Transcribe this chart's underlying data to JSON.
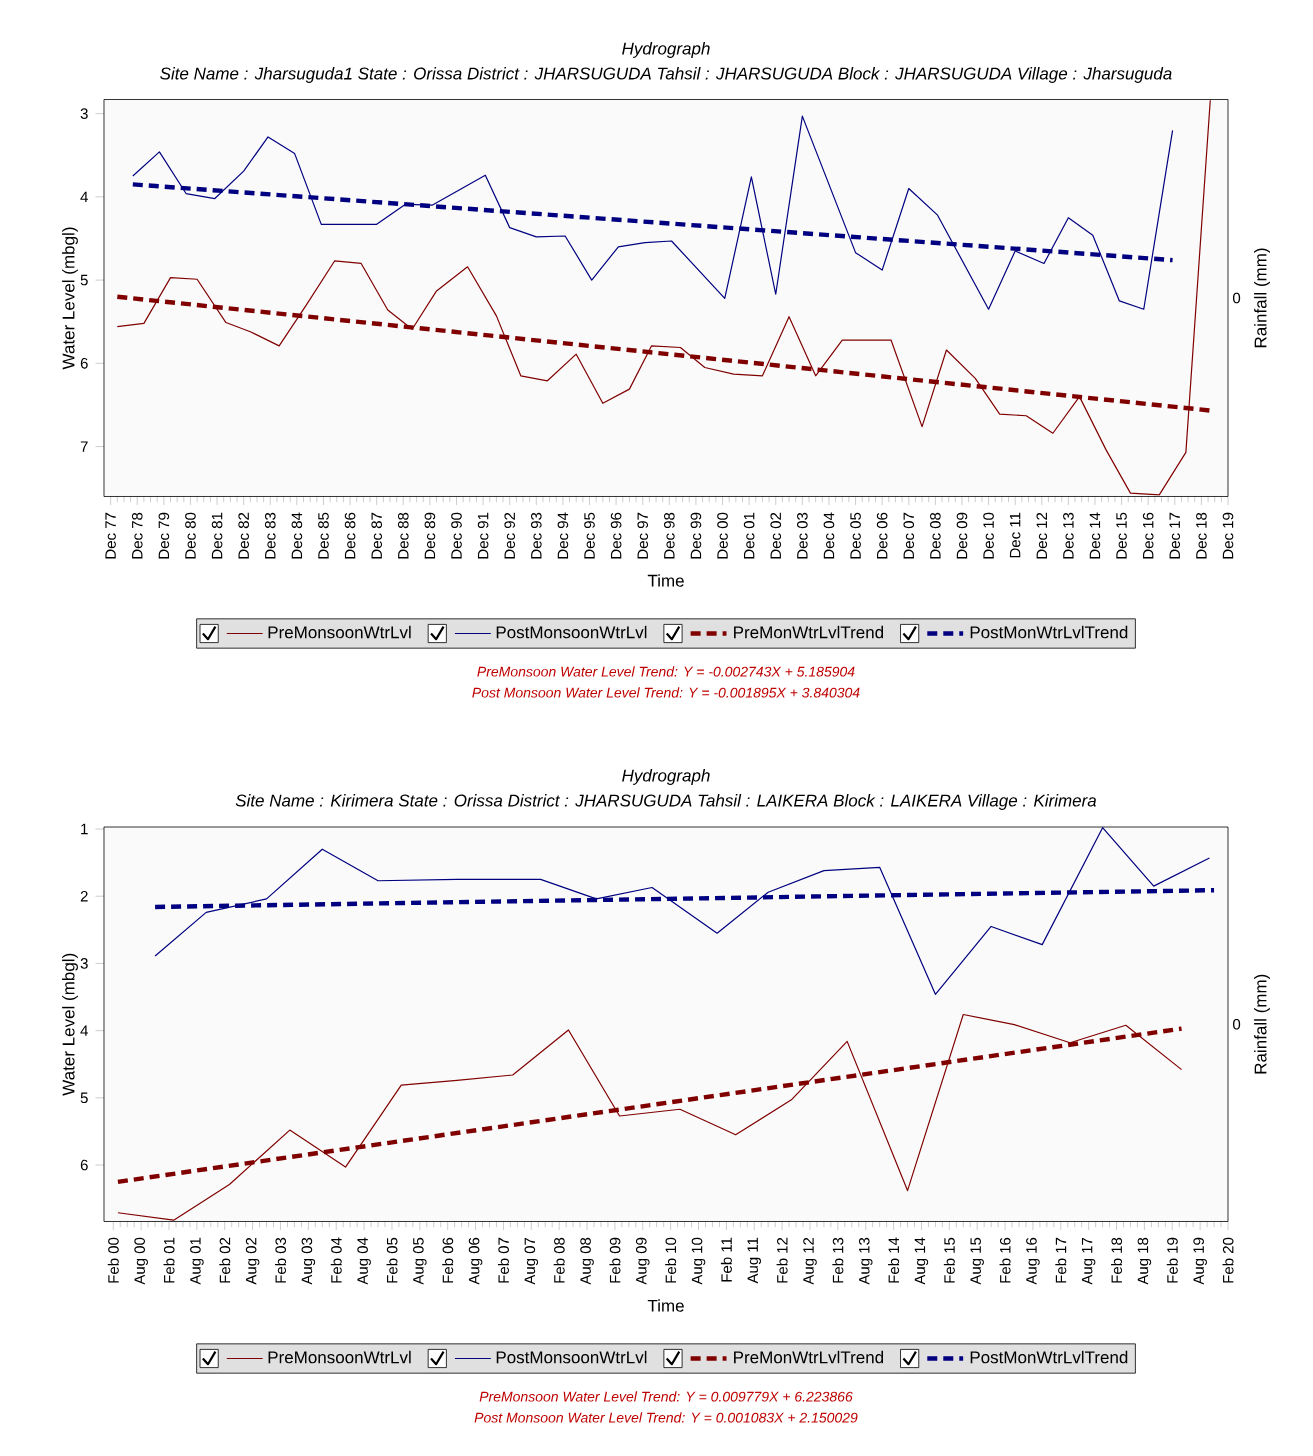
{
  "chart_data": [
    {
      "type": "line",
      "title": "Hydrograph",
      "subtitle": "Site Name : Jharsuguda1  State : Orissa District : JHARSUGUDA  Tahsil : JHARSUGUDA  Block : JHARSUGUDA Village : Jharsuguda",
      "xlabel": "Time",
      "ylabel": "Water Level (mbgl)",
      "y2label": "Rainfall (mm)",
      "xlim": [
        "1977-09",
        "2019-12"
      ],
      "ylim": [
        7.6,
        2.83
      ],
      "yticks": [
        3,
        4,
        5,
        6,
        7
      ],
      "legend": "bottom",
      "line_style": "solid",
      "xticks": [
        {
          "value": "1977-12",
          "label": "Dec 77"
        },
        {
          "value": "1978-12",
          "label": "Dec 78"
        },
        {
          "value": "1979-12",
          "label": "Dec 79"
        },
        {
          "value": "1980-12",
          "label": "Dec 80"
        },
        {
          "value": "1981-12",
          "label": "Dec 81"
        },
        {
          "value": "1982-12",
          "label": "Dec 82"
        },
        {
          "value": "1983-12",
          "label": "Dec 83"
        },
        {
          "value": "1984-12",
          "label": "Dec 84"
        },
        {
          "value": "1985-12",
          "label": "Dec 85"
        },
        {
          "value": "1986-12",
          "label": "Dec 86"
        },
        {
          "value": "1987-12",
          "label": "Dec 87"
        },
        {
          "value": "1988-12",
          "label": "Dec 88"
        },
        {
          "value": "1989-12",
          "label": "Dec 89"
        },
        {
          "value": "1990-12",
          "label": "Dec 90"
        },
        {
          "value": "1991-12",
          "label": "Dec 91"
        },
        {
          "value": "1992-12",
          "label": "Dec 92"
        },
        {
          "value": "1993-12",
          "label": "Dec 93"
        },
        {
          "value": "1994-12",
          "label": "Dec 94"
        },
        {
          "value": "1995-12",
          "label": "Dec 95"
        },
        {
          "value": "1996-12",
          "label": "Dec 96"
        },
        {
          "value": "1997-12",
          "label": "Dec 97"
        },
        {
          "value": "1998-12",
          "label": "Dec 98"
        },
        {
          "value": "1999-12",
          "label": "Dec 99"
        },
        {
          "value": "2000-12",
          "label": "Dec 00"
        },
        {
          "value": "2001-12",
          "label": "Dec 01"
        },
        {
          "value": "2002-12",
          "label": "Dec 02"
        },
        {
          "value": "2003-12",
          "label": "Dec 03"
        },
        {
          "value": "2004-12",
          "label": "Dec 04"
        },
        {
          "value": "2005-12",
          "label": "Dec 05"
        },
        {
          "value": "2006-12",
          "label": "Dec 06"
        },
        {
          "value": "2007-12",
          "label": "Dec 07"
        },
        {
          "value": "2008-12",
          "label": "Dec 08"
        },
        {
          "value": "2009-12",
          "label": "Dec 09"
        },
        {
          "value": "2010-12",
          "label": "Dec 10"
        },
        {
          "value": "2011-12",
          "label": "Dec 11"
        },
        {
          "value": "2012-12",
          "label": "Dec 12"
        },
        {
          "value": "2013-12",
          "label": "Dec 13"
        },
        {
          "value": "2014-12",
          "label": "Dec 14"
        },
        {
          "value": "2015-12",
          "label": "Dec 15"
        },
        {
          "value": "2016-12",
          "label": "Dec 16"
        },
        {
          "value": "2017-12",
          "label": "Dec 17"
        },
        {
          "value": "2018-12",
          "label": "Dec 18"
        },
        {
          "value": "2019-12",
          "label": "Dec 19"
        }
      ],
      "series": [
        {
          "name": "PreMonsoonWtrLvl",
          "color": "#800000",
          "x": [
            "1978-03",
            "1979-03",
            "1980-03",
            "1981-03",
            "1982-04",
            "1983-03",
            "1984-04",
            "1985-04",
            "1986-05",
            "1987-05",
            "1988-05",
            "1989-04",
            "1990-03",
            "1991-05",
            "1992-06",
            "1993-05",
            "1994-05",
            "1995-06",
            "1996-06",
            "1997-06",
            "1998-04",
            "1999-05",
            "2000-04",
            "2001-05",
            "2002-06",
            "2003-06",
            "2004-06",
            "2005-06",
            "2007-04",
            "2008-06",
            "2009-05",
            "2010-06",
            "2011-05",
            "2012-05",
            "2013-05",
            "2014-05",
            "2015-05",
            "2016-04",
            "2017-05",
            "2018-05",
            "2019-04"
          ],
          "values": [
            5.56,
            5.52,
            4.97,
            4.99,
            5.51,
            5.62,
            5.79,
            5.31,
            4.77,
            4.8,
            5.36,
            5.59,
            5.13,
            4.84,
            5.43,
            6.15,
            6.21,
            5.89,
            6.48,
            6.31,
            5.79,
            5.81,
            6.05,
            6.13,
            6.15,
            5.44,
            6.15,
            5.72,
            5.72,
            6.76,
            5.84,
            6.18,
            6.61,
            6.63,
            6.84,
            6.4,
            7.04,
            7.56,
            7.58,
            7.07,
            2.84
          ]
        },
        {
          "name": "PostMonsoonWtrLvl",
          "color": "#000080",
          "x": [
            "1978-10",
            "1979-10",
            "1980-10",
            "1981-11",
            "1982-12",
            "1983-11",
            "1984-11",
            "1985-11",
            "1987-12",
            "1989-01",
            "1990-01",
            "1992-01",
            "1992-12",
            "1993-12",
            "1995-01",
            "1996-01",
            "1997-01",
            "1998-01",
            "1999-01",
            "2001-01",
            "2002-01",
            "2002-12",
            "2003-12",
            "2005-12",
            "2006-12",
            "2007-12",
            "2009-01",
            "2010-12",
            "2011-12",
            "2013-01",
            "2013-12",
            "2014-11",
            "2015-11",
            "2016-10",
            "2017-11"
          ],
          "values": [
            3.75,
            3.46,
            3.96,
            4.02,
            3.69,
            3.28,
            3.48,
            4.33,
            4.33,
            4.09,
            4.1,
            3.74,
            4.37,
            4.48,
            4.47,
            5.0,
            4.6,
            4.55,
            4.53,
            5.22,
            3.76,
            5.17,
            3.03,
            4.67,
            4.88,
            3.9,
            4.22,
            5.35,
            4.65,
            4.8,
            4.25,
            4.46,
            5.25,
            5.35,
            3.2
          ]
        },
        {
          "name": "PreMonWtrLvlTrend",
          "color": "#800000",
          "type": "line",
          "line_style": "dashed",
          "x": [
            "1978-03",
            "2019-05"
          ],
          "values": [
            5.2,
            6.57
          ]
        },
        {
          "name": "PostMonWtrLvlTrend",
          "color": "#000080",
          "type": "line",
          "line_style": "dashed",
          "x": [
            "1978-10",
            "2017-11"
          ],
          "values": [
            3.85,
            4.76
          ]
        }
      ],
      "annotations": [
        "PreMonsoon Water Level Trend: Y = -0.002743X + 5.185904",
        "Post Monsoon Water Level Trend: Y = -0.001895X + 3.840304",
        "0"
      ]
    },
    {
      "type": "line",
      "title": "Hydrograph",
      "subtitle": "Site Name : Kirimera  State : Orissa District : JHARSUGUDA  Tahsil : LAIKERA  Block : LAIKERA Village : Kirimera",
      "xlabel": "Time",
      "ylabel": "Water Level (mbgl)",
      "y2label": "Rainfall (mm)",
      "xlim": [
        "1999-12",
        "2020-02"
      ],
      "ylim": [
        6.84,
        0.97
      ],
      "yticks": [
        1,
        2,
        3,
        4,
        5,
        6
      ],
      "legend": "bottom",
      "line_style": "solid",
      "xticks": [
        {
          "value": "2000-02",
          "label": "Feb 00"
        },
        {
          "value": "2000-08",
          "label": "Aug 00"
        },
        {
          "value": "2001-02",
          "label": "Feb 01"
        },
        {
          "value": "2001-08",
          "label": "Aug 01"
        },
        {
          "value": "2002-02",
          "label": "Feb 02"
        },
        {
          "value": "2002-08",
          "label": "Aug 02"
        },
        {
          "value": "2003-02",
          "label": "Feb 03"
        },
        {
          "value": "2003-08",
          "label": "Aug 03"
        },
        {
          "value": "2004-02",
          "label": "Feb 04"
        },
        {
          "value": "2004-08",
          "label": "Aug 04"
        },
        {
          "value": "2005-02",
          "label": "Feb 05"
        },
        {
          "value": "2005-08",
          "label": "Aug 05"
        },
        {
          "value": "2006-02",
          "label": "Feb 06"
        },
        {
          "value": "2006-08",
          "label": "Aug 06"
        },
        {
          "value": "2007-02",
          "label": "Feb 07"
        },
        {
          "value": "2007-08",
          "label": "Aug 07"
        },
        {
          "value": "2008-02",
          "label": "Feb 08"
        },
        {
          "value": "2008-08",
          "label": "Aug 08"
        },
        {
          "value": "2009-02",
          "label": "Feb 09"
        },
        {
          "value": "2009-08",
          "label": "Aug 09"
        },
        {
          "value": "2010-02",
          "label": "Feb 10"
        },
        {
          "value": "2010-08",
          "label": "Aug 10"
        },
        {
          "value": "2011-02",
          "label": "Feb 11"
        },
        {
          "value": "2011-08",
          "label": "Aug 11"
        },
        {
          "value": "2012-02",
          "label": "Feb 12"
        },
        {
          "value": "2012-08",
          "label": "Aug 12"
        },
        {
          "value": "2013-02",
          "label": "Feb 13"
        },
        {
          "value": "2013-08",
          "label": "Aug 13"
        },
        {
          "value": "2014-02",
          "label": "Feb 14"
        },
        {
          "value": "2014-08",
          "label": "Aug 14"
        },
        {
          "value": "2015-02",
          "label": "Feb 15"
        },
        {
          "value": "2015-08",
          "label": "Aug 15"
        },
        {
          "value": "2016-02",
          "label": "Feb 16"
        },
        {
          "value": "2016-08",
          "label": "Aug 16"
        },
        {
          "value": "2017-02",
          "label": "Feb 17"
        },
        {
          "value": "2017-08",
          "label": "Aug 17"
        },
        {
          "value": "2018-02",
          "label": "Feb 18"
        },
        {
          "value": "2018-08",
          "label": "Aug 18"
        },
        {
          "value": "2019-02",
          "label": "Feb 19"
        },
        {
          "value": "2019-08",
          "label": "Aug 19"
        },
        {
          "value": "2020-02",
          "label": "Feb 20"
        }
      ],
      "series": [
        {
          "name": "PreMonsoonWtrLvl",
          "color": "#800000",
          "x": [
            "2000-03",
            "2001-03",
            "2002-03",
            "2003-04",
            "2004-04",
            "2005-04",
            "2006-04",
            "2007-04",
            "2008-04",
            "2009-03",
            "2010-04",
            "2011-04",
            "2012-04",
            "2013-04",
            "2014-05",
            "2015-05",
            "2016-04",
            "2017-04",
            "2018-04",
            "2019-04"
          ],
          "values": [
            6.71,
            6.82,
            6.29,
            5.48,
            6.03,
            4.81,
            4.74,
            4.66,
            3.99,
            5.27,
            5.17,
            5.55,
            5.03,
            4.16,
            6.38,
            3.76,
            3.91,
            4.18,
            3.92,
            4.58
          ]
        },
        {
          "name": "PostMonsoonWtrLvl",
          "color": "#000080",
          "x": [
            "2000-11",
            "2001-10",
            "2002-11",
            "2003-11",
            "2004-11",
            "2006-04",
            "2007-10",
            "2008-10",
            "2009-10",
            "2010-12",
            "2011-11",
            "2012-11",
            "2013-11",
            "2014-11",
            "2015-11",
            "2016-10",
            "2017-11",
            "2018-10",
            "2019-10"
          ],
          "values": [
            2.89,
            2.24,
            2.04,
            1.3,
            1.77,
            1.75,
            1.75,
            2.04,
            1.87,
            2.55,
            1.94,
            1.62,
            1.57,
            3.46,
            2.45,
            2.72,
            0.98,
            1.85,
            1.43
          ]
        },
        {
          "name": "PreMonWtrLvlTrend",
          "color": "#800000",
          "type": "line",
          "line_style": "dashed",
          "x": [
            "2000-03",
            "2019-04"
          ],
          "values": [
            6.25,
            3.97
          ]
        },
        {
          "name": "PostMonWtrLvlTrend",
          "color": "#000080",
          "type": "line",
          "line_style": "dashed",
          "x": [
            "2000-11",
            "2019-11"
          ],
          "values": [
            2.16,
            1.91
          ]
        }
      ],
      "annotations": [
        "PreMonsoon Water Level Trend: Y = 0.009779X + 6.223866",
        "Post Monsoon Water Level Trend: Y = 0.001083X + 2.150029",
        "0"
      ]
    }
  ]
}
